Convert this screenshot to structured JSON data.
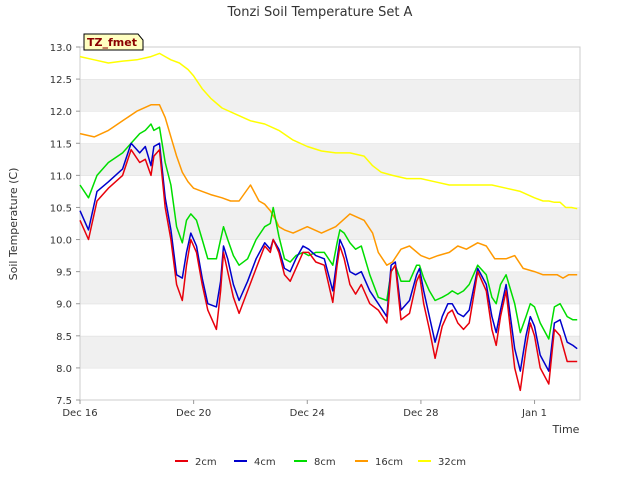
{
  "chart_data": {
    "type": "line",
    "title": "Tonzi Soil Temperature Set A",
    "xlabel": "Time",
    "ylabel": "Soil Temperature (C)",
    "site_label": "TZ_fmet",
    "ylim": [
      7.5,
      13.0
    ],
    "xlim": [
      0,
      17.6
    ],
    "yticks": [
      7.5,
      8.0,
      8.5,
      9.0,
      9.5,
      10.0,
      10.5,
      11.0,
      11.5,
      12.0,
      12.5,
      13.0
    ],
    "ytick_labels": [
      "7.5",
      "8.0",
      "8.5",
      "9.0",
      "9.5",
      "10.0",
      "10.5",
      "11.0",
      "11.5",
      "12.0",
      "12.5",
      "13.0"
    ],
    "xticks": [
      0,
      4,
      8,
      12,
      16
    ],
    "xtick_labels": [
      "Dec 16",
      "Dec 20",
      "Dec 24",
      "Dec 28",
      "Jan 1"
    ],
    "x_units": "days since Dec 16",
    "legend_position": "bottom-center",
    "series": [
      {
        "name": "2cm",
        "color": "#e8000b",
        "x": [
          0,
          0.3,
          0.6,
          1,
          1.5,
          1.8,
          2.1,
          2.3,
          2.5,
          2.6,
          2.8,
          3.0,
          3.2,
          3.4,
          3.6,
          3.75,
          3.9,
          4.1,
          4.3,
          4.5,
          4.8,
          4.95,
          5.05,
          5.2,
          5.4,
          5.6,
          5.9,
          6.2,
          6.5,
          6.7,
          6.8,
          7.0,
          7.2,
          7.4,
          7.6,
          7.85,
          8.05,
          8.3,
          8.6,
          8.9,
          9.05,
          9.15,
          9.3,
          9.5,
          9.7,
          9.9,
          10.2,
          10.5,
          10.8,
          10.95,
          11.1,
          11.3,
          11.6,
          11.85,
          11.95,
          12.1,
          12.3,
          12.5,
          12.75,
          12.95,
          13.1,
          13.3,
          13.5,
          13.7,
          14.0,
          14.3,
          14.5,
          14.65,
          14.8,
          15.0,
          15.3,
          15.5,
          15.7,
          15.85,
          16.0,
          16.2,
          16.5,
          16.7,
          16.9,
          17.15,
          17.35,
          17.5
        ],
        "y": [
          10.3,
          10.0,
          10.6,
          10.8,
          11.0,
          11.4,
          11.2,
          11.25,
          11.0,
          11.3,
          11.4,
          10.5,
          10.0,
          9.3,
          9.05,
          9.6,
          10.0,
          9.8,
          9.3,
          8.9,
          8.6,
          9.2,
          9.8,
          9.5,
          9.1,
          8.85,
          9.2,
          9.55,
          9.9,
          9.8,
          10.0,
          9.8,
          9.45,
          9.35,
          9.55,
          9.8,
          9.8,
          9.65,
          9.6,
          9.02,
          9.6,
          9.9,
          9.7,
          9.3,
          9.15,
          9.3,
          9.0,
          8.9,
          8.7,
          9.5,
          9.6,
          8.75,
          8.85,
          9.35,
          9.45,
          9.0,
          8.6,
          8.15,
          8.65,
          8.85,
          8.9,
          8.7,
          8.6,
          8.7,
          9.5,
          9.2,
          8.6,
          8.35,
          8.8,
          9.2,
          8.0,
          7.65,
          8.3,
          8.7,
          8.5,
          8.0,
          7.75,
          8.6,
          8.5,
          8.1,
          8.1,
          8.1
        ]
      },
      {
        "name": "4cm",
        "color": "#0000cc",
        "x": [
          0,
          0.3,
          0.6,
          1,
          1.5,
          1.8,
          2.1,
          2.3,
          2.5,
          2.6,
          2.8,
          3.0,
          3.2,
          3.4,
          3.6,
          3.75,
          3.9,
          4.1,
          4.3,
          4.5,
          4.8,
          4.95,
          5.05,
          5.2,
          5.4,
          5.6,
          5.9,
          6.2,
          6.5,
          6.7,
          6.8,
          7.0,
          7.2,
          7.4,
          7.6,
          7.85,
          8.05,
          8.3,
          8.6,
          8.9,
          9.05,
          9.15,
          9.3,
          9.5,
          9.7,
          9.9,
          10.2,
          10.5,
          10.8,
          10.95,
          11.1,
          11.3,
          11.6,
          11.85,
          11.95,
          12.1,
          12.3,
          12.5,
          12.75,
          12.95,
          13.1,
          13.3,
          13.5,
          13.7,
          14.0,
          14.3,
          14.5,
          14.65,
          14.8,
          15.0,
          15.3,
          15.5,
          15.7,
          15.85,
          16.0,
          16.2,
          16.5,
          16.7,
          16.9,
          17.15,
          17.35,
          17.5
        ],
        "y": [
          10.45,
          10.15,
          10.75,
          10.9,
          11.1,
          11.5,
          11.35,
          11.45,
          11.15,
          11.45,
          11.5,
          10.65,
          10.15,
          9.45,
          9.4,
          9.8,
          10.1,
          9.9,
          9.4,
          9.0,
          8.95,
          9.35,
          9.9,
          9.7,
          9.3,
          9.05,
          9.35,
          9.7,
          9.95,
          9.85,
          10.0,
          9.85,
          9.55,
          9.5,
          9.7,
          9.9,
          9.85,
          9.75,
          9.7,
          9.2,
          9.7,
          10.0,
          9.85,
          9.5,
          9.45,
          9.5,
          9.2,
          9.0,
          8.8,
          9.6,
          9.65,
          8.9,
          9.05,
          9.45,
          9.55,
          9.2,
          8.8,
          8.4,
          8.8,
          9.0,
          9.0,
          8.85,
          8.8,
          8.9,
          9.55,
          9.3,
          8.8,
          8.55,
          8.9,
          9.3,
          8.3,
          7.95,
          8.5,
          8.8,
          8.65,
          8.2,
          7.95,
          8.7,
          8.75,
          8.4,
          8.35,
          8.3
        ]
      },
      {
        "name": "8cm",
        "color": "#00dd00",
        "x": [
          0,
          0.3,
          0.6,
          1,
          1.5,
          1.8,
          2.1,
          2.3,
          2.5,
          2.6,
          2.8,
          3.0,
          3.2,
          3.4,
          3.6,
          3.75,
          3.9,
          4.1,
          4.3,
          4.5,
          4.8,
          4.95,
          5.05,
          5.2,
          5.4,
          5.6,
          5.9,
          6.2,
          6.5,
          6.7,
          6.8,
          7.0,
          7.2,
          7.4,
          7.6,
          7.85,
          8.05,
          8.3,
          8.6,
          8.9,
          9.05,
          9.15,
          9.3,
          9.5,
          9.7,
          9.9,
          10.2,
          10.5,
          10.8,
          10.95,
          11.1,
          11.3,
          11.6,
          11.85,
          11.95,
          12.1,
          12.3,
          12.5,
          12.75,
          12.95,
          13.1,
          13.3,
          13.5,
          13.7,
          14.0,
          14.3,
          14.5,
          14.65,
          14.8,
          15.0,
          15.3,
          15.5,
          15.7,
          15.85,
          16.0,
          16.2,
          16.5,
          16.7,
          16.9,
          17.15,
          17.35,
          17.5
        ],
        "y": [
          10.85,
          10.65,
          11.0,
          11.2,
          11.35,
          11.5,
          11.65,
          11.7,
          11.8,
          11.7,
          11.75,
          11.2,
          10.85,
          10.2,
          9.95,
          10.3,
          10.4,
          10.3,
          10.0,
          9.7,
          9.7,
          10.0,
          10.2,
          10.0,
          9.75,
          9.6,
          9.7,
          10.0,
          10.2,
          10.25,
          10.5,
          10.05,
          9.7,
          9.65,
          9.75,
          9.8,
          9.75,
          9.8,
          9.8,
          9.6,
          9.95,
          10.15,
          10.1,
          9.95,
          9.85,
          9.9,
          9.45,
          9.1,
          9.05,
          9.5,
          9.6,
          9.35,
          9.35,
          9.6,
          9.6,
          9.4,
          9.2,
          9.05,
          9.1,
          9.15,
          9.2,
          9.15,
          9.2,
          9.3,
          9.6,
          9.45,
          9.1,
          9.0,
          9.3,
          9.45,
          9.0,
          8.55,
          8.8,
          9.0,
          8.95,
          8.7,
          8.45,
          8.95,
          9.0,
          8.8,
          8.75,
          8.75
        ]
      },
      {
        "name": "16cm",
        "color": "#ff9900",
        "x": [
          0,
          0.5,
          1,
          1.5,
          2,
          2.5,
          2.8,
          3.0,
          3.2,
          3.4,
          3.6,
          3.8,
          4.0,
          4.3,
          4.6,
          5.0,
          5.3,
          5.6,
          6.0,
          6.3,
          6.5,
          6.7,
          6.9,
          7.0,
          7.2,
          7.5,
          8.0,
          8.5,
          9.0,
          9.5,
          10.0,
          10.3,
          10.5,
          10.8,
          11.0,
          11.3,
          11.6,
          12.0,
          12.3,
          12.6,
          13.0,
          13.3,
          13.6,
          14.0,
          14.3,
          14.6,
          15.0,
          15.3,
          15.6,
          16.0,
          16.3,
          16.5,
          16.8,
          17.0,
          17.2,
          17.5
        ],
        "y": [
          11.65,
          11.6,
          11.7,
          11.85,
          12.0,
          12.1,
          12.1,
          11.9,
          11.6,
          11.3,
          11.05,
          10.9,
          10.8,
          10.75,
          10.7,
          10.65,
          10.6,
          10.6,
          10.85,
          10.6,
          10.55,
          10.45,
          10.3,
          10.2,
          10.15,
          10.1,
          10.2,
          10.1,
          10.2,
          10.4,
          10.3,
          10.1,
          9.8,
          9.6,
          9.65,
          9.85,
          9.9,
          9.75,
          9.7,
          9.75,
          9.8,
          9.9,
          9.85,
          9.95,
          9.9,
          9.7,
          9.7,
          9.75,
          9.55,
          9.5,
          9.45,
          9.45,
          9.45,
          9.4,
          9.45,
          9.45
        ]
      },
      {
        "name": "32cm",
        "color": "#ffff00",
        "x": [
          0,
          0.5,
          1,
          1.5,
          2,
          2.5,
          2.8,
          3.0,
          3.2,
          3.5,
          3.8,
          4.0,
          4.3,
          4.6,
          5.0,
          5.5,
          6.0,
          6.5,
          7.0,
          7.5,
          8.0,
          8.5,
          9.0,
          9.5,
          10.0,
          10.3,
          10.6,
          11.0,
          11.5,
          12.0,
          12.5,
          13.0,
          13.5,
          14.0,
          14.5,
          15.0,
          15.5,
          16.0,
          16.3,
          16.5,
          16.7,
          16.9,
          17.1,
          17.3,
          17.5
        ],
        "y": [
          12.85,
          12.8,
          12.75,
          12.78,
          12.8,
          12.85,
          12.9,
          12.85,
          12.8,
          12.75,
          12.65,
          12.55,
          12.35,
          12.2,
          12.05,
          11.95,
          11.85,
          11.8,
          11.7,
          11.55,
          11.45,
          11.38,
          11.35,
          11.35,
          11.3,
          11.15,
          11.05,
          11.0,
          10.95,
          10.95,
          10.9,
          10.85,
          10.85,
          10.85,
          10.85,
          10.8,
          10.75,
          10.65,
          10.6,
          10.6,
          10.58,
          10.58,
          10.5,
          10.5,
          10.48
        ]
      }
    ]
  }
}
